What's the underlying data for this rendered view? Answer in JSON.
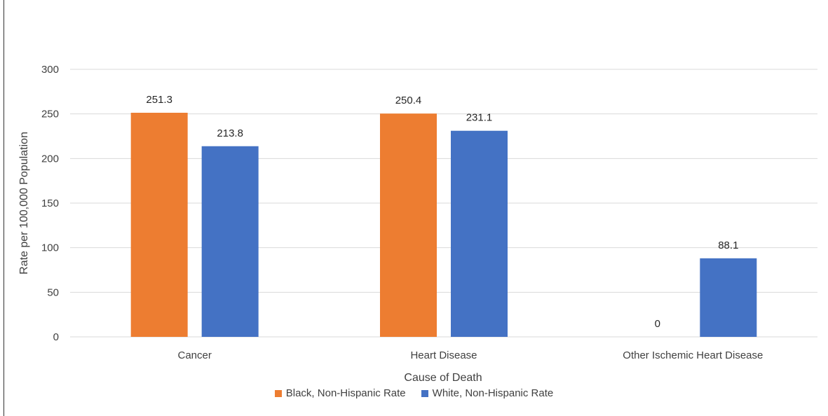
{
  "chart_data": {
    "type": "bar",
    "categories": [
      "Cancer",
      "Heart Disease",
      "Other Ischemic Heart Disease"
    ],
    "series": [
      {
        "name": "Black, Non-Hispanic Rate",
        "values": [
          251.3,
          250.4,
          0
        ],
        "color": "#ED7D31"
      },
      {
        "name": "White, Non-Hispanic Rate",
        "values": [
          213.8,
          231.1,
          88.1
        ],
        "color": "#4472C4"
      }
    ],
    "xlabel": "Cause of Death",
    "ylabel": "Rate per 100,000 Population",
    "ylim": [
      0,
      300
    ],
    "yticks": [
      0,
      50,
      100,
      150,
      200,
      250,
      300
    ],
    "grid": true,
    "legend_position": "bottom"
  }
}
